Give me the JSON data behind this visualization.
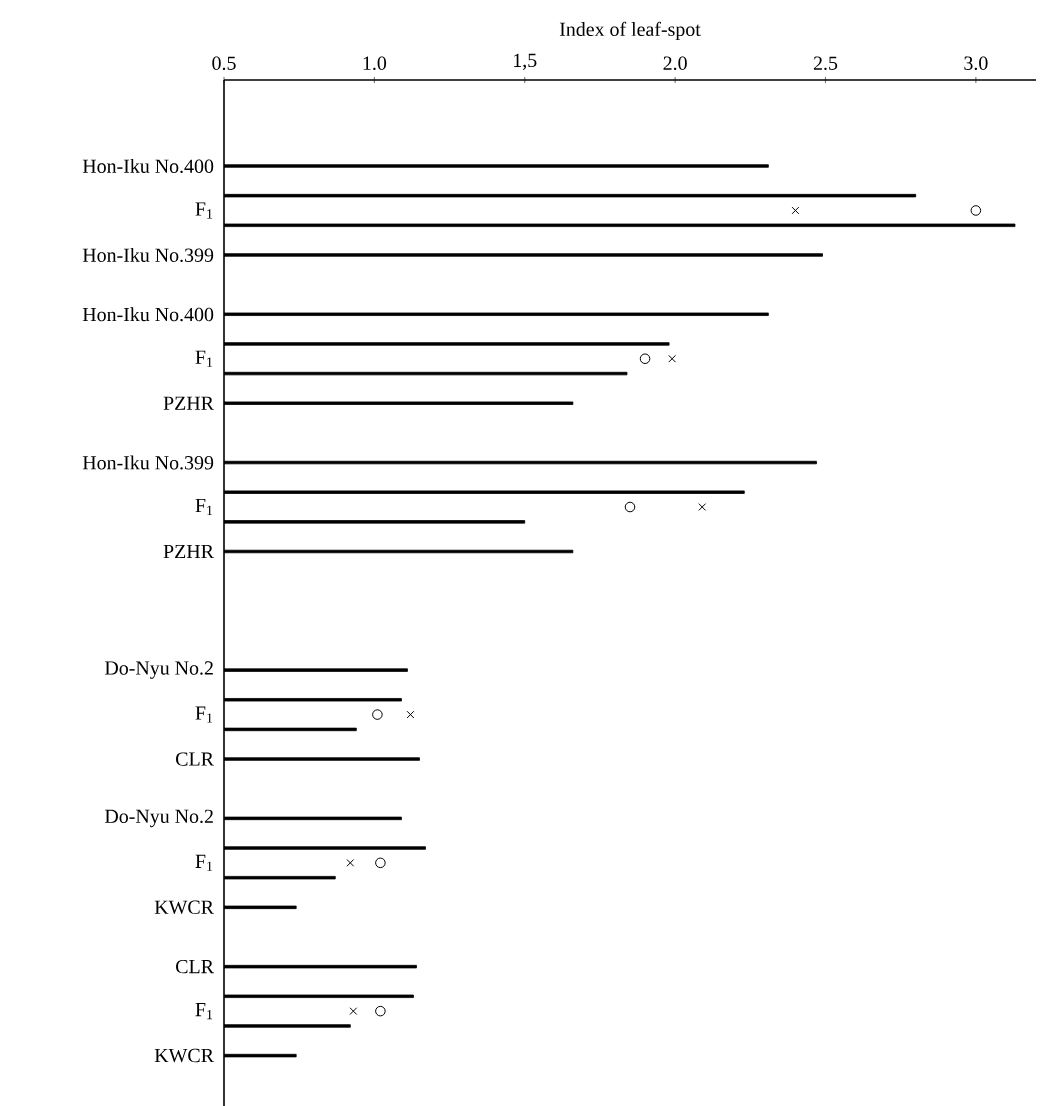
{
  "chart_data": {
    "type": "bar",
    "orientation": "horizontal",
    "xlabel": "Index of leaf-spot",
    "categories": [
      "Hon-Iku No.400",
      null,
      null,
      "F$_{1}$",
      null,
      null,
      "Hon-Iku No.399",
      null,
      null,
      null,
      "Hon-Iku No.400",
      null,
      null,
      "F$_{1}$",
      null,
      null,
      "PZHR",
      null,
      null,
      null,
      "Hon-Iku No.399",
      null,
      null,
      "F$_{1}$",
      null,
      null,
      "PZHR",
      null,
      null,
      null,
      null,
      null,
      null,
      null,
      "Do-Nyu No.2",
      null,
      null,
      "F$_{1}$",
      null,
      null,
      "CLR",
      null,
      null,
      null,
      "Do-Nyu No.2",
      null,
      null,
      "F$_{1}$",
      null,
      null,
      "KWCR",
      null,
      null,
      null,
      "CLR",
      null,
      null,
      "F$_{1}$",
      null,
      null,
      "KWCR"
    ],
    "xlim": [
      0.5,
      3.2
    ],
    "xticks": [
      0.5,
      {
        "value": 1.0,
        "label": "1.0"
      },
      {
        "value": 1.5,
        "label": "1,5"
      },
      {
        "value": 2.0,
        "label": "2.0"
      },
      2.5,
      {
        "value": 3.0,
        "label": "3.0"
      }
    ],
    "series": [
      {
        "color": "#000000",
        "values": [
          2.31,
          null,
          2.8,
          null,
          3.13,
          null,
          2.49,
          null,
          null,
          null,
          2.31,
          null,
          1.98,
          null,
          1.84,
          null,
          1.66,
          null,
          null,
          null,
          2.47,
          null,
          2.23,
          null,
          1.5,
          null,
          1.66,
          null,
          null,
          null,
          null,
          null,
          null,
          null,
          1.11,
          null,
          1.09,
          null,
          0.94,
          null,
          1.15,
          null,
          null,
          null,
          1.09,
          null,
          1.17,
          null,
          0.87,
          null,
          0.74,
          null,
          null,
          null,
          1.14,
          null,
          1.13,
          null,
          0.92,
          null,
          0.74
        ]
      },
      {
        "type": "scatter",
        "marker": "cross",
        "color": "#000000",
        "values": [
          null,
          null,
          null,
          2.4,
          null,
          null,
          null,
          null,
          null,
          null,
          null,
          null,
          null,
          1.99,
          null,
          null,
          null,
          null,
          null,
          null,
          null,
          null,
          null,
          2.09,
          null,
          null,
          null,
          null,
          null,
          null,
          null,
          null,
          null,
          null,
          null,
          null,
          null,
          1.12,
          null,
          null,
          null,
          null,
          null,
          null,
          null,
          null,
          null,
          0.92,
          null,
          null,
          null,
          null,
          null,
          null,
          null,
          null,
          null,
          0.93,
          null,
          null,
          null
        ]
      },
      {
        "type": "scatter",
        "marker": "circle",
        "color": "#000000",
        "values": [
          null,
          null,
          null,
          3.0,
          null,
          null,
          null,
          null,
          null,
          null,
          null,
          null,
          null,
          1.9,
          null,
          null,
          null,
          null,
          null,
          null,
          null,
          null,
          null,
          1.85,
          null,
          null,
          null,
          null,
          null,
          null,
          null,
          null,
          null,
          null,
          null,
          null,
          null,
          1.01,
          null,
          null,
          null,
          null,
          null,
          null,
          null,
          null,
          null,
          1.02,
          null,
          null,
          null,
          null,
          null,
          null,
          null,
          null,
          null,
          1.02,
          null,
          null,
          null
        ]
      }
    ]
  }
}
